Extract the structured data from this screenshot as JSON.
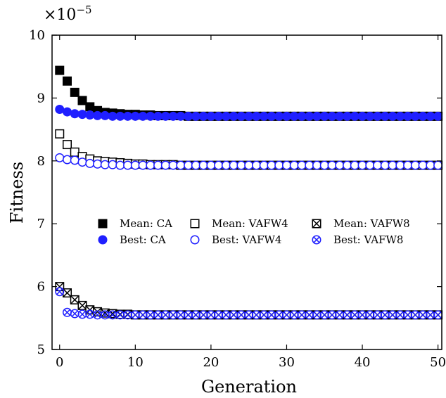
{
  "chart_data": {
    "type": "scatter",
    "title": "",
    "xlabel": "Generation",
    "ylabel": "Fitness",
    "y_multiplier_label": "×10",
    "y_multiplier_exponent": "−5",
    "xlim": [
      -1,
      50.5
    ],
    "ylim": [
      5,
      10
    ],
    "x_ticks": [
      0,
      10,
      20,
      30,
      40,
      50
    ],
    "y_ticks": [
      5,
      6,
      7,
      8,
      9,
      10
    ],
    "x_tick_labels": [
      "0",
      "10",
      "20",
      "30",
      "40",
      "50"
    ],
    "y_tick_labels": [
      "5",
      "6",
      "7",
      "8",
      "9",
      "10"
    ],
    "legend_position": "center",
    "legend_columns": 3,
    "grid": false,
    "x": [
      0,
      1,
      2,
      3,
      4,
      5,
      6,
      7,
      8,
      9,
      10,
      11,
      12,
      13,
      14,
      15,
      16,
      17,
      18,
      19,
      20,
      21,
      22,
      23,
      24,
      25,
      26,
      27,
      28,
      29,
      30,
      31,
      32,
      33,
      34,
      35,
      36,
      37,
      38,
      39,
      40,
      41,
      42,
      43,
      44,
      45,
      46,
      47,
      48,
      49,
      50
    ],
    "series": [
      {
        "name": "Mean: CA",
        "marker": "filled-square",
        "color": "#000000",
        "values": [
          9.44,
          9.27,
          9.09,
          8.96,
          8.86,
          8.8,
          8.77,
          8.76,
          8.75,
          8.74,
          8.74,
          8.73,
          8.73,
          8.72,
          8.72,
          8.72,
          8.72,
          8.71,
          8.71,
          8.71,
          8.71,
          8.71,
          8.71,
          8.71,
          8.71,
          8.71,
          8.71,
          8.71,
          8.71,
          8.71,
          8.71,
          8.71,
          8.71,
          8.71,
          8.71,
          8.71,
          8.71,
          8.71,
          8.71,
          8.71,
          8.71,
          8.71,
          8.71,
          8.71,
          8.71,
          8.71,
          8.71,
          8.71,
          8.71,
          8.71,
          8.71
        ]
      },
      {
        "name": "Best: CA",
        "marker": "filled-circle",
        "color": "#1f1fff",
        "values": [
          8.82,
          8.78,
          8.75,
          8.74,
          8.73,
          8.72,
          8.72,
          8.71,
          8.71,
          8.71,
          8.71,
          8.71,
          8.71,
          8.71,
          8.71,
          8.71,
          8.71,
          8.71,
          8.71,
          8.71,
          8.71,
          8.71,
          8.71,
          8.71,
          8.71,
          8.71,
          8.71,
          8.71,
          8.71,
          8.71,
          8.71,
          8.71,
          8.71,
          8.71,
          8.71,
          8.71,
          8.71,
          8.71,
          8.71,
          8.71,
          8.71,
          8.71,
          8.71,
          8.71,
          8.71,
          8.71,
          8.71,
          8.71,
          8.71,
          8.71,
          8.71
        ]
      },
      {
        "name": "Mean: VAFW4",
        "marker": "open-square",
        "color": "#000000",
        "values": [
          8.43,
          8.26,
          8.14,
          8.07,
          8.03,
          8.0,
          7.99,
          7.98,
          7.97,
          7.96,
          7.95,
          7.95,
          7.94,
          7.94,
          7.94,
          7.94,
          7.93,
          7.93,
          7.93,
          7.93,
          7.93,
          7.93,
          7.93,
          7.93,
          7.93,
          7.93,
          7.93,
          7.93,
          7.93,
          7.93,
          7.93,
          7.93,
          7.93,
          7.93,
          7.93,
          7.93,
          7.93,
          7.93,
          7.93,
          7.93,
          7.93,
          7.93,
          7.93,
          7.93,
          7.93,
          7.93,
          7.93,
          7.93,
          7.93,
          7.93,
          7.93
        ]
      },
      {
        "name": "Best: VAFW4",
        "marker": "open-circle",
        "color": "#1f1fff",
        "values": [
          8.05,
          8.02,
          8.01,
          7.98,
          7.96,
          7.95,
          7.94,
          7.94,
          7.93,
          7.93,
          7.93,
          7.93,
          7.93,
          7.93,
          7.93,
          7.93,
          7.93,
          7.93,
          7.93,
          7.93,
          7.93,
          7.93,
          7.93,
          7.93,
          7.93,
          7.93,
          7.93,
          7.93,
          7.93,
          7.93,
          7.93,
          7.93,
          7.93,
          7.93,
          7.93,
          7.93,
          7.93,
          7.93,
          7.93,
          7.93,
          7.93,
          7.93,
          7.93,
          7.93,
          7.93,
          7.93,
          7.93,
          7.93,
          7.93,
          7.93,
          7.93
        ]
      },
      {
        "name": "Mean: VAFW8",
        "marker": "crossed-square",
        "color": "#000000",
        "values": [
          6.0,
          5.9,
          5.79,
          5.7,
          5.63,
          5.6,
          5.58,
          5.57,
          5.56,
          5.56,
          5.55,
          5.55,
          5.55,
          5.55,
          5.55,
          5.55,
          5.55,
          5.55,
          5.55,
          5.55,
          5.55,
          5.55,
          5.55,
          5.55,
          5.55,
          5.55,
          5.55,
          5.55,
          5.55,
          5.55,
          5.55,
          5.55,
          5.55,
          5.55,
          5.55,
          5.55,
          5.55,
          5.55,
          5.55,
          5.55,
          5.55,
          5.55,
          5.55,
          5.55,
          5.55,
          5.55,
          5.55,
          5.55,
          5.55,
          5.55,
          5.55
        ]
      },
      {
        "name": "Best: VAFW8",
        "marker": "crossed-circle",
        "color": "#1f1fff",
        "values": [
          5.92,
          5.59,
          5.57,
          5.56,
          5.56,
          5.55,
          5.55,
          5.55,
          5.55,
          5.55,
          5.55,
          5.55,
          5.55,
          5.55,
          5.55,
          5.55,
          5.55,
          5.55,
          5.55,
          5.55,
          5.55,
          5.55,
          5.55,
          5.55,
          5.55,
          5.55,
          5.55,
          5.55,
          5.55,
          5.55,
          5.55,
          5.55,
          5.55,
          5.55,
          5.55,
          5.55,
          5.55,
          5.55,
          5.55,
          5.55,
          5.55,
          5.55,
          5.55,
          5.55,
          5.55,
          5.55,
          5.55,
          5.55,
          5.55,
          5.55,
          5.55
        ]
      }
    ]
  }
}
